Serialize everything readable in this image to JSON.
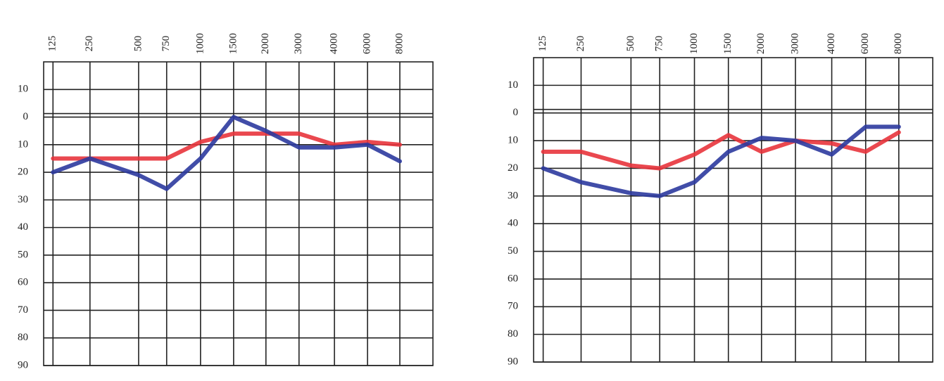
{
  "chart_data": [
    {
      "type": "line",
      "categories": [
        "125",
        "250",
        "500",
        "750",
        "1000",
        "1500",
        "2000",
        "3000",
        "4000",
        "6000",
        "8000"
      ],
      "ylim": [
        -20,
        90
      ],
      "yticks": [
        {
          "value": -10,
          "label": "10"
        },
        0,
        10,
        20,
        30,
        40,
        50,
        60,
        70,
        80,
        90
      ],
      "grid": true,
      "series": [
        {
          "color": "#e8343c",
          "values": [
            15,
            15,
            15,
            15,
            9,
            6,
            6,
            6,
            10,
            9,
            10
          ]
        },
        {
          "color": "#2c3a9e",
          "values": [
            20,
            15,
            21,
            26,
            15,
            0,
            5,
            11,
            11,
            10,
            16
          ]
        }
      ]
    },
    {
      "type": "line",
      "categories": [
        "125",
        "250",
        "500",
        "750",
        "1000",
        "1500",
        "2000",
        "3000",
        "4000",
        "6000",
        "8000"
      ],
      "ylim": [
        -20,
        90
      ],
      "yticks": [
        {
          "value": -10,
          "label": "10"
        },
        0,
        10,
        20,
        30,
        40,
        50,
        60,
        70,
        80,
        90
      ],
      "grid": true,
      "series": [
        {
          "color": "#e8343c",
          "values": [
            14,
            14,
            19,
            20,
            15,
            8,
            14,
            10,
            11,
            14,
            7
          ]
        },
        {
          "color": "#2c3a9e",
          "values": [
            20,
            25,
            29,
            30,
            25,
            14,
            9,
            10,
            15,
            5,
            5
          ]
        }
      ]
    }
  ]
}
